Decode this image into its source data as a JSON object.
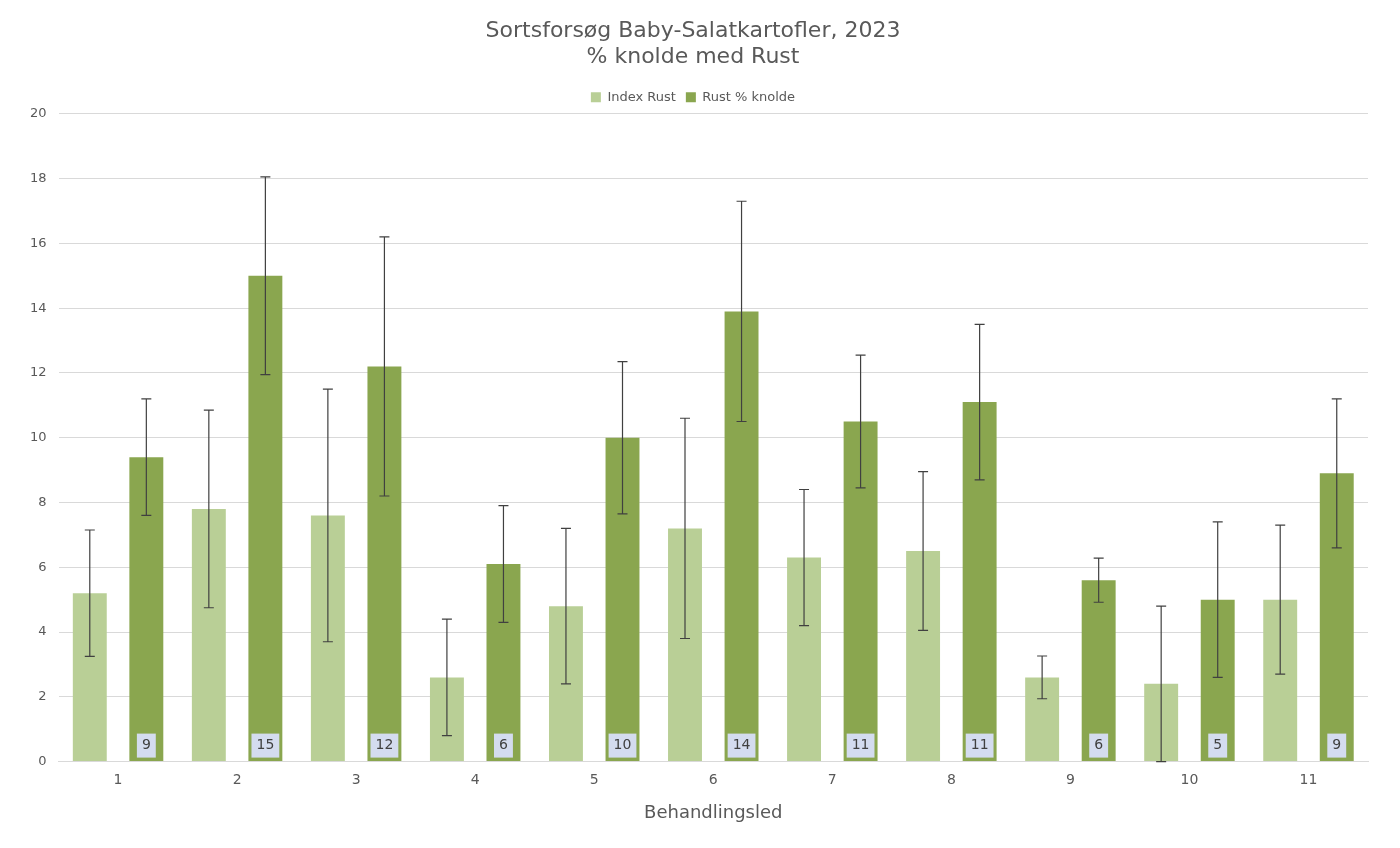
{
  "chart_data": {
    "type": "bar",
    "title": "Sortsforsøg Baby-Salatkartofler, 2023",
    "subtitle": "% knolde med Rust",
    "xlabel": "Behandlingsled",
    "categories": [
      "1",
      "2",
      "3",
      "4",
      "5",
      "6",
      "7",
      "8",
      "9",
      "10",
      "11"
    ],
    "series": [
      {
        "name": "Index Rust",
        "color": "#b9cf96",
        "values": [
          5.2,
          7.8,
          7.6,
          2.6,
          4.8,
          7.2,
          6.3,
          6.5,
          2.6,
          2.4,
          5.0
        ],
        "errors": [
          1.95,
          3.05,
          3.9,
          1.8,
          2.4,
          3.4,
          2.1,
          2.45,
          0.66,
          2.4,
          2.3
        ]
      },
      {
        "name": "Rust % knolde",
        "color": "#8aa64f",
        "values": [
          9.4,
          15.0,
          12.2,
          6.1,
          10.0,
          13.9,
          10.5,
          11.1,
          5.6,
          5.0,
          8.9
        ],
        "errors": [
          1.8,
          3.05,
          4.0,
          1.8,
          2.35,
          3.4,
          2.05,
          2.4,
          0.68,
          2.4,
          2.3
        ],
        "value_labels": [
          "9",
          "15",
          "12",
          "6",
          "10",
          "14",
          "11",
          "11",
          "6",
          "5",
          "9"
        ]
      }
    ],
    "ylim": [
      0,
      20
    ],
    "yticks": [
      0,
      2,
      4,
      6,
      8,
      10,
      12,
      14,
      16,
      18,
      20
    ],
    "grid": "y",
    "legend": "top"
  }
}
